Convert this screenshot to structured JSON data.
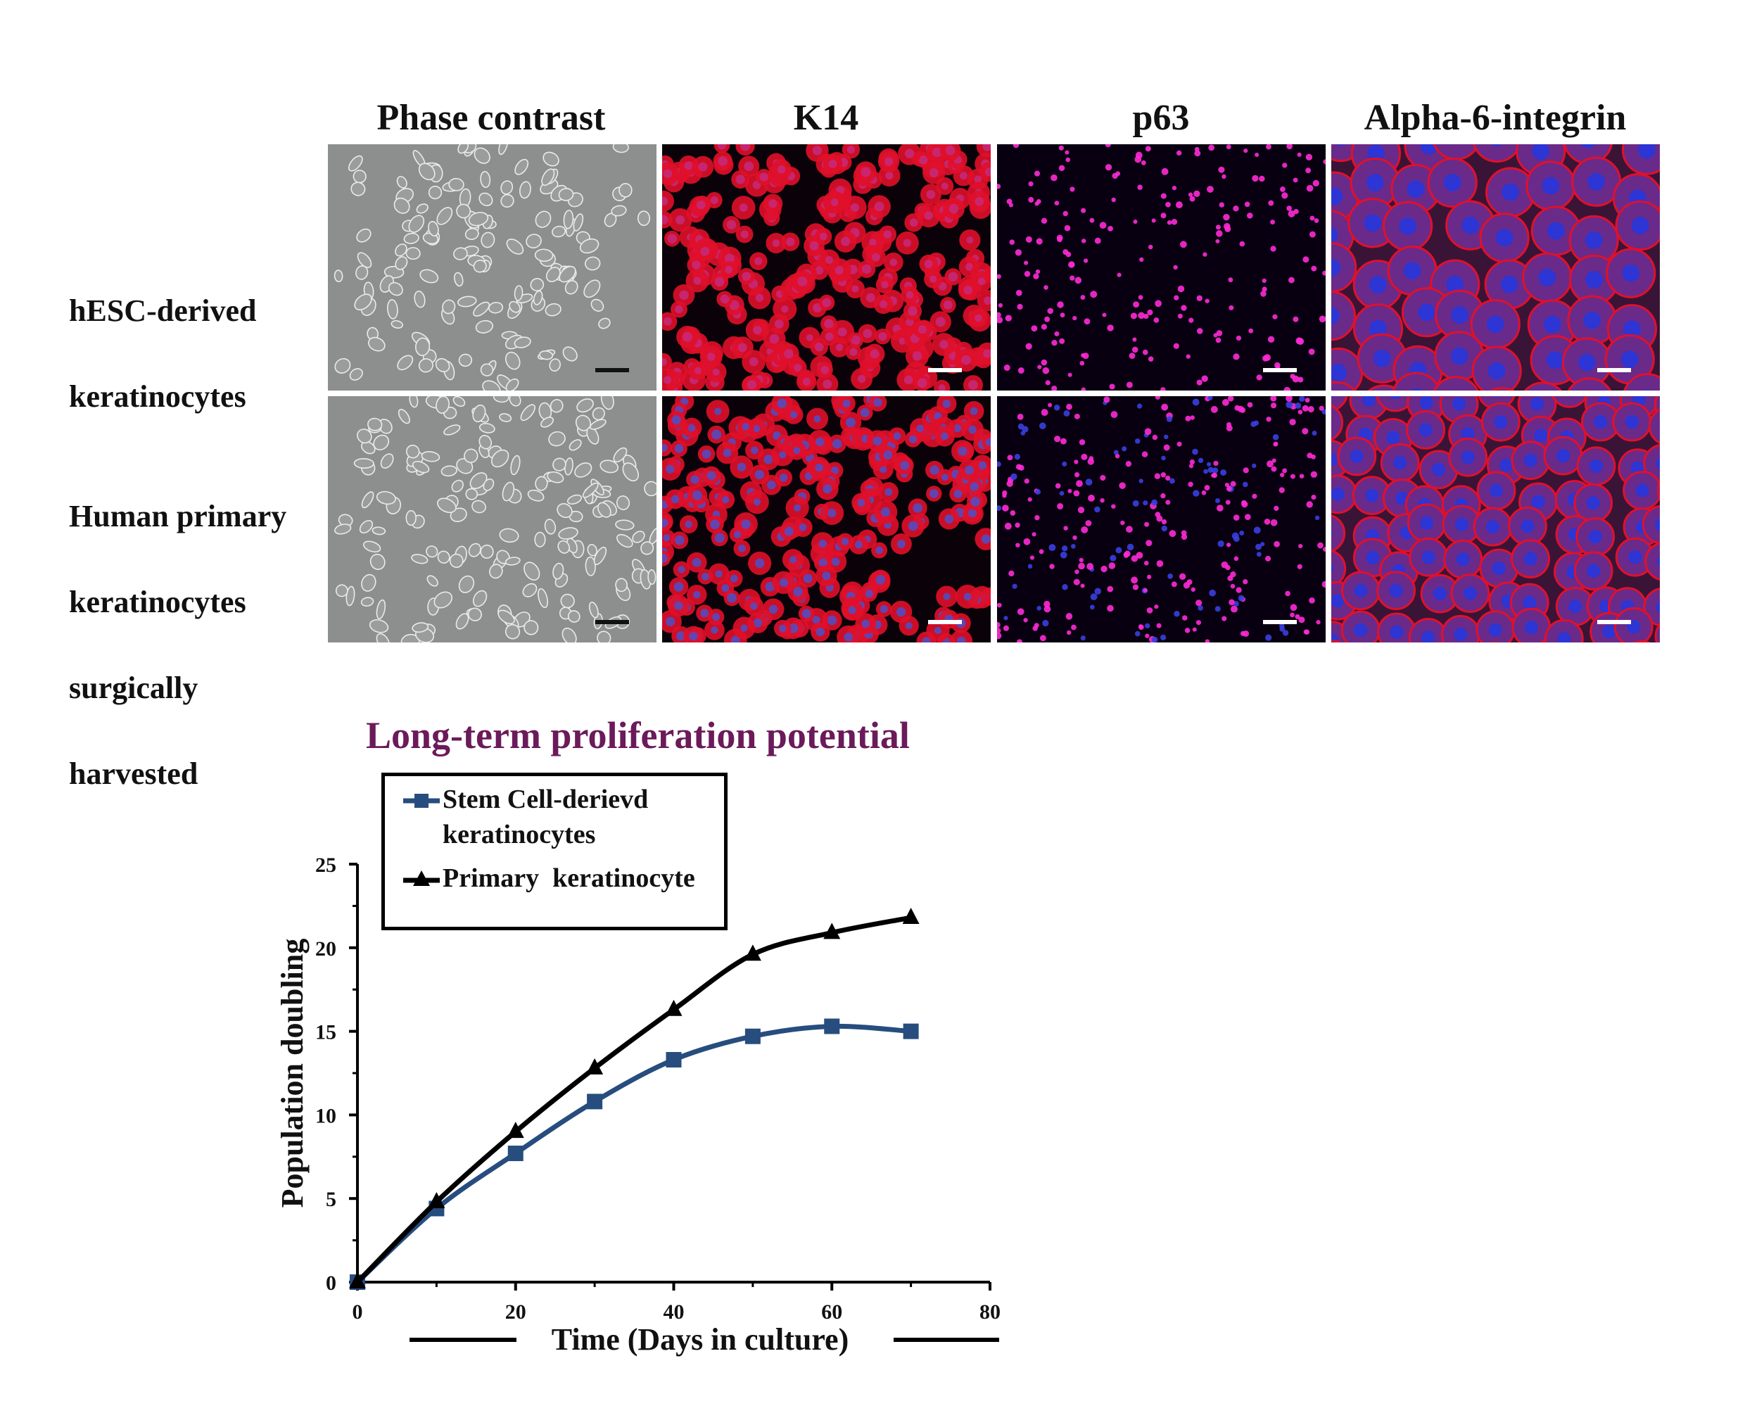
{
  "figure": {
    "columns": [
      "Phase contrast",
      "K14",
      "p63",
      "Alpha-6-integrin"
    ],
    "rows": [
      {
        "label_lines": [
          "hESC-derived",
          "keratinocytes"
        ]
      },
      {
        "label_lines": [
          "Human primary",
          "keratinocytes",
          "surgically",
          "harvested"
        ]
      }
    ],
    "panel_kinds": [
      "phase",
      "k14",
      "p63",
      "a6"
    ],
    "colors": {
      "red_stain": "#e0102a",
      "blue_stain": "#2a36d8",
      "magenta_nuclei": "#ff2ad6",
      "phase_bg": "#8c8f8e"
    }
  },
  "chart_data": {
    "type": "line",
    "title": "Long-term proliferation potential",
    "title_color": "#6b1a5a",
    "xlabel": "Time (Days in culture)",
    "ylabel": "Population doubling",
    "xlim": [
      0,
      80
    ],
    "ylim": [
      0,
      25
    ],
    "xticks": [
      0,
      20,
      40,
      60,
      80
    ],
    "yticks": [
      0,
      5,
      10,
      15,
      20,
      25
    ],
    "grid": false,
    "legend_position": "top-left",
    "series": [
      {
        "name_lines": [
          "Stem Cell-derievd",
          "keratinocytes"
        ],
        "color": "#264d7e",
        "marker": "square",
        "x": [
          0,
          10,
          20,
          30,
          40,
          50,
          60,
          70
        ],
        "y": [
          0,
          4.4,
          7.7,
          10.8,
          13.3,
          14.7,
          15.3,
          15.0
        ]
      },
      {
        "name_lines": [
          "Primary  keratinocyte"
        ],
        "color": "#000000",
        "marker": "triangle",
        "x": [
          0,
          10,
          20,
          30,
          40,
          50,
          60,
          70
        ],
        "y": [
          0,
          4.8,
          9.0,
          12.8,
          16.3,
          19.6,
          20.9,
          21.8
        ]
      }
    ]
  }
}
